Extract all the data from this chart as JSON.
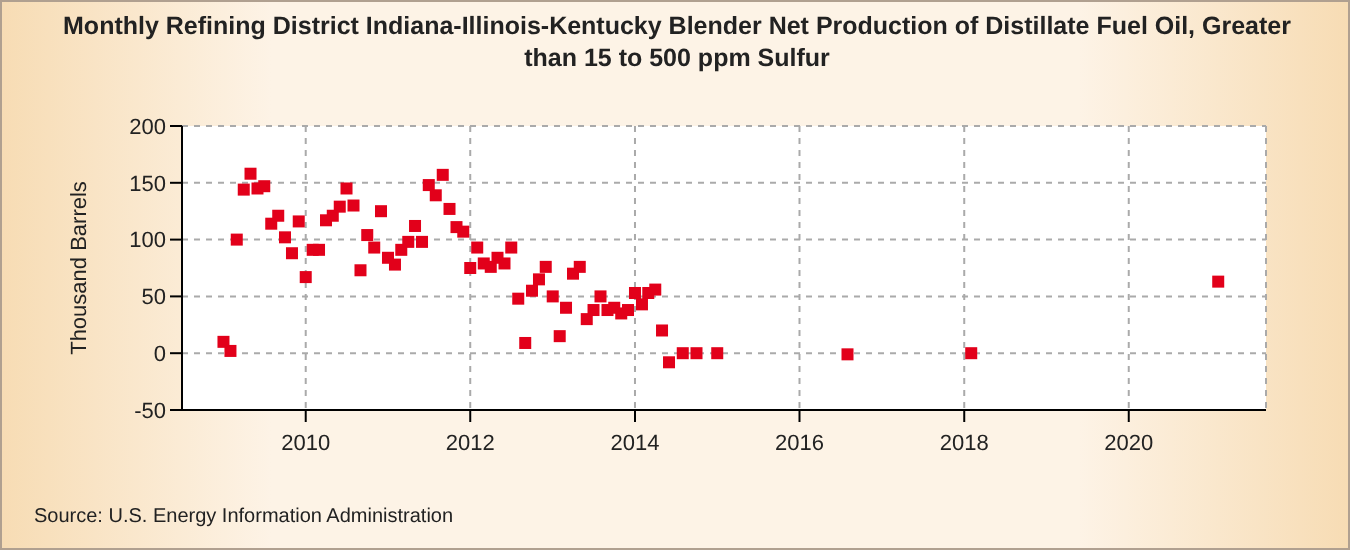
{
  "chart_data": {
    "type": "scatter",
    "title": "Monthly Refining District Indiana-Illinois-Kentucky Blender Net Production of Distillate Fuel Oil, Greater than 15 to 500 ppm Sulfur",
    "ylabel": "Thousand Barrels",
    "annotations": [
      "Source: U.S. Energy Information Administration"
    ],
    "x": [
      "2009-01",
      "2009-02",
      "2009-03",
      "2009-04",
      "2009-05",
      "2009-06",
      "2009-07",
      "2009-08",
      "2009-09",
      "2009-10",
      "2009-11",
      "2009-12",
      "2010-01",
      "2010-02",
      "2010-03",
      "2010-04",
      "2010-05",
      "2010-06",
      "2010-07",
      "2010-08",
      "2010-09",
      "2010-10",
      "2010-11",
      "2010-12",
      "2011-01",
      "2011-02",
      "2011-03",
      "2011-04",
      "2011-05",
      "2011-06",
      "2011-07",
      "2011-08",
      "2011-09",
      "2011-10",
      "2011-11",
      "2011-12",
      "2012-01",
      "2012-02",
      "2012-03",
      "2012-04",
      "2012-05",
      "2012-06",
      "2012-07",
      "2012-08",
      "2012-09",
      "2012-10",
      "2012-11",
      "2012-12",
      "2013-01",
      "2013-02",
      "2013-03",
      "2013-04",
      "2013-05",
      "2013-06",
      "2013-07",
      "2013-08",
      "2013-09",
      "2013-10",
      "2013-11",
      "2013-12",
      "2014-01",
      "2014-02",
      "2014-03",
      "2014-04",
      "2014-05",
      "2014-06",
      "2014-08",
      "2014-10",
      "2015-01",
      "2016-08",
      "2018-02",
      "2021-02"
    ],
    "series": [
      {
        "color": "#e2001a",
        "values": [
          10,
          2,
          100,
          144,
          158,
          145,
          147,
          114,
          121,
          102,
          88,
          116,
          67,
          91,
          91,
          117,
          121,
          129,
          145,
          130,
          73,
          104,
          93,
          125,
          84,
          78,
          91,
          98,
          112,
          98,
          148,
          139,
          157,
          127,
          111,
          107,
          75,
          93,
          79,
          76,
          84,
          79,
          93,
          48,
          9,
          55,
          65,
          76,
          50,
          15,
          40,
          70,
          76,
          30,
          38,
          50,
          38,
          40,
          35,
          38,
          53,
          43,
          53,
          56,
          20,
          -8,
          0,
          0,
          0,
          -1,
          0,
          63
        ]
      }
    ],
    "xlim": [
      "2008-07",
      "2021-09"
    ],
    "xticks": [
      "2010",
      "2012",
      "2014",
      "2016",
      "2018",
      "2020"
    ],
    "ylim": [
      -50,
      200
    ],
    "yticks": [
      -50,
      0,
      50,
      100,
      150,
      200
    ],
    "grid": true,
    "marker": "square",
    "legend": false
  }
}
